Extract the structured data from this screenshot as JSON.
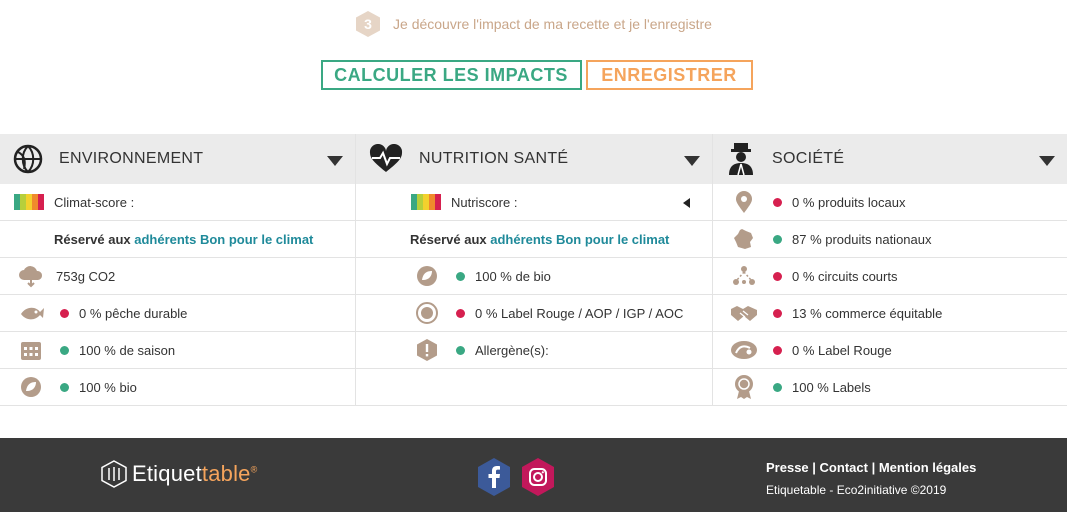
{
  "step": {
    "number": "3",
    "text": "Je découvre l'impact de ma recette et je l'enregistre"
  },
  "buttons": {
    "calculate_label": "CALCULER LES IMPACTS",
    "save_label": "ENREGISTRER"
  },
  "colors": {
    "green": "#3aa883",
    "orange": "#f5a45c",
    "red": "#d6204f",
    "teal_link": "#1f8a9a",
    "icon_tan": "#b39c8a",
    "footer_bg": "#3a3a3a"
  },
  "columns": {
    "environment": {
      "title": "ENVIRONNEMENT",
      "icon": "globe-leaf-icon",
      "climate_label": "Climat-score :",
      "reserve_prefix": "Réservé aux ",
      "reserve_link": "adhérents Bon pour le climat",
      "co2": "753g CO2",
      "fishing": "0 % pêche durable",
      "season": "100 % de saison",
      "bio": "100 % bio"
    },
    "nutrition": {
      "title": "NUTRITION SANTÉ",
      "icon": "heart-pulse-icon",
      "nutriscore_label": "Nutriscore :",
      "reserve_prefix": "Réservé aux ",
      "reserve_link": "adhérents Bon pour le climat",
      "bio": "100 % de bio",
      "label_rouge": "0 % Label Rouge / AOP / IGP / AOC",
      "allergens": "Allergène(s):"
    },
    "society": {
      "title": "SOCIÉTÉ",
      "icon": "chef-person-icon",
      "local": "0 % produits locaux",
      "national": "87 % produits nationaux",
      "short_circuits": "0 % circuits courts",
      "fair_trade": "13 % commerce équitable",
      "label_rouge": "0 % Label Rouge",
      "labels": "100 % Labels"
    }
  },
  "footer": {
    "logo_main": "Etiquet",
    "logo_accent": "table",
    "logo_mark": "®",
    "links": [
      "Presse",
      "Contact",
      "Mention légales"
    ],
    "separator": "|",
    "copyright": "Etiquetable - Eco2initiative ©2019"
  }
}
